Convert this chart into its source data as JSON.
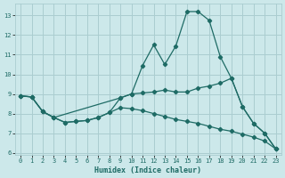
{
  "xlabel": "Humidex (Indice chaleur)",
  "bg_color": "#cce8ea",
  "grid_color": "#aacdd0",
  "line_color": "#1e6b65",
  "line1_x": [
    0,
    1,
    2,
    3,
    4,
    5,
    6,
    7,
    8,
    9,
    10,
    11,
    12,
    13,
    14,
    15,
    16,
    17,
    18,
    19,
    20,
    21,
    22,
    23
  ],
  "line1_y": [
    8.9,
    8.85,
    8.1,
    7.8,
    7.55,
    7.6,
    7.65,
    7.8,
    8.05,
    8.8,
    9.0,
    10.45,
    11.5,
    10.5,
    11.45,
    13.2,
    13.2,
    12.75,
    10.9,
    9.8,
    8.35,
    7.5,
    7.0,
    6.2
  ],
  "line2_x": [
    0,
    1,
    2,
    3,
    9,
    10,
    11,
    12,
    13,
    14,
    15,
    16,
    17,
    18,
    19,
    20,
    21,
    22,
    23
  ],
  "line2_y": [
    8.9,
    8.85,
    8.1,
    7.8,
    8.8,
    9.0,
    9.05,
    9.1,
    9.2,
    9.1,
    9.1,
    9.3,
    9.4,
    9.55,
    9.8,
    8.35,
    7.5,
    7.0,
    6.2
  ],
  "line3_x": [
    0,
    1,
    2,
    3,
    4,
    5,
    6,
    7,
    8,
    9,
    10,
    11,
    12,
    13,
    14,
    15,
    16,
    17,
    18,
    19,
    20,
    21,
    22,
    23
  ],
  "line3_y": [
    8.9,
    8.85,
    8.1,
    7.8,
    7.55,
    7.6,
    7.65,
    7.8,
    8.05,
    8.3,
    8.25,
    8.15,
    8.0,
    7.85,
    7.7,
    7.6,
    7.5,
    7.35,
    7.2,
    7.1,
    6.95,
    6.8,
    6.6,
    6.2
  ],
  "xlim": [
    -0.5,
    23.5
  ],
  "ylim": [
    5.9,
    13.6
  ],
  "yticks": [
    6,
    7,
    8,
    9,
    10,
    11,
    12,
    13
  ],
  "xticks": [
    0,
    1,
    2,
    3,
    4,
    5,
    6,
    7,
    8,
    9,
    10,
    11,
    12,
    13,
    14,
    15,
    16,
    17,
    18,
    19,
    20,
    21,
    22,
    23
  ]
}
